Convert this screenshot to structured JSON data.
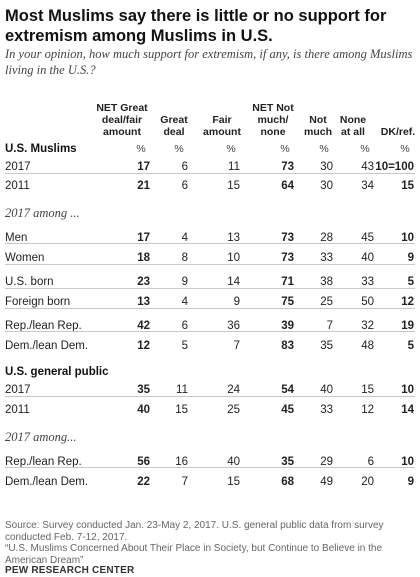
{
  "chart_data": {
    "type": "table",
    "title": "Most Muslims say there is little or no support for extremism among Muslims in U.S.",
    "subtitle": "In your opinion, how much support for extremism, if any, is there among Muslims living in the U.S.?",
    "columns": [
      "NET Great deal/fair amount",
      "Great deal",
      "Fair amount",
      "NET Not much/ none",
      "Not much",
      "None at all",
      "DK/ref."
    ],
    "percent_symbol": "%",
    "sections": [
      {
        "label": "U.S. Muslims",
        "rows": [
          {
            "label": "2017",
            "values": [
              "17",
              "6",
              "11",
              "73",
              "30",
              "43",
              "10=100"
            ]
          },
          {
            "label": "2011",
            "values": [
              "21",
              "6",
              "15",
              "64",
              "30",
              "34",
              "15"
            ]
          }
        ]
      },
      {
        "label": "2017 among ...",
        "rows": [
          {
            "label": "Men",
            "values": [
              "17",
              "4",
              "13",
              "73",
              "28",
              "45",
              "10"
            ]
          },
          {
            "label": "Women",
            "values": [
              "18",
              "8",
              "10",
              "73",
              "33",
              "40",
              "9"
            ]
          },
          {
            "label": "U.S. born",
            "values": [
              "23",
              "9",
              "14",
              "71",
              "38",
              "33",
              "5"
            ]
          },
          {
            "label": "Foreign born",
            "values": [
              "13",
              "4",
              "9",
              "75",
              "25",
              "50",
              "12"
            ]
          },
          {
            "label": "Rep./lean Rep.",
            "values": [
              "42",
              "6",
              "36",
              "39",
              "7",
              "32",
              "19"
            ]
          },
          {
            "label": "Dem./lean Dem.",
            "values": [
              "12",
              "5",
              "7",
              "83",
              "35",
              "48",
              "5"
            ]
          }
        ]
      },
      {
        "label": "U.S. general public",
        "rows": [
          {
            "label": "2017",
            "values": [
              "35",
              "11",
              "24",
              "54",
              "40",
              "15",
              "10"
            ]
          },
          {
            "label": "2011",
            "values": [
              "40",
              "15",
              "25",
              "45",
              "33",
              "12",
              "14"
            ]
          }
        ]
      },
      {
        "label": "2017 among...",
        "rows": [
          {
            "label": "Rep./lean Rep.",
            "values": [
              "56",
              "16",
              "40",
              "35",
              "29",
              "6",
              "10"
            ]
          },
          {
            "label": "Dem./lean Dem.",
            "values": [
              "22",
              "7",
              "15",
              "68",
              "49",
              "20",
              "9"
            ]
          }
        ]
      }
    ]
  },
  "footer": {
    "source": "Source: Survey conducted Jan. 23-May 2, 2017. U.S. general public data from survey conducted Feb. 7-12, 2017.",
    "report": "“U.S. Muslims Concerned About Their Place in Society, but Continue to Believe in the American Dream”",
    "org": "PEW RESEARCH CENTER"
  }
}
